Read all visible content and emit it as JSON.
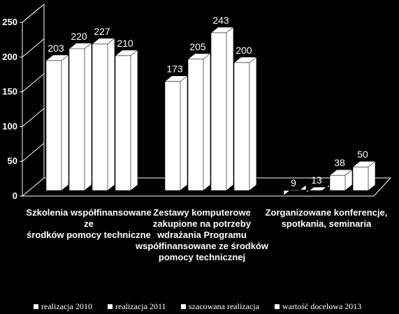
{
  "chart_data": {
    "type": "bar",
    "categories": [
      "Szkolenia współfinansowane ze środków pomocy techniczne",
      "Zestawy komputerowe zakupione na potrzeby wdrażania Programu współfinansowane ze środków pomocy technicznej",
      "Zorganizowane konferencje, spotkania, seminaria"
    ],
    "category_lines": [
      [
        "Szkolenia współfinansowane ze",
        "środków pomocy techniczne"
      ],
      [
        "Zestawy komputerowe",
        "zakupione na potrzeby",
        "wdrażania Programu",
        "współfinansowane ze środków",
        "pomocy technicznej"
      ],
      [
        "Zorganizowane konferencje,",
        "spotkania, seminaria"
      ]
    ],
    "series": [
      {
        "name": "realizacja 2010",
        "values": [
          203,
          173,
          9
        ]
      },
      {
        "name": "realizacja 2011",
        "values": [
          220,
          205,
          13
        ]
      },
      {
        "name": "szacowana realizacja",
        "values": [
          227,
          243,
          38
        ]
      },
      {
        "name": "wartość docelowa 2013",
        "values": [
          210,
          200,
          50
        ]
      }
    ],
    "yticks": [
      "0",
      "50",
      "100",
      "150",
      "200",
      "250"
    ],
    "ylim": [
      0,
      250
    ],
    "grid": false,
    "legend_position": "bottom",
    "colors": {
      "background": "#000000",
      "bars": "#ffffff",
      "text": "#ffffff",
      "axis": "#ffffff"
    }
  }
}
